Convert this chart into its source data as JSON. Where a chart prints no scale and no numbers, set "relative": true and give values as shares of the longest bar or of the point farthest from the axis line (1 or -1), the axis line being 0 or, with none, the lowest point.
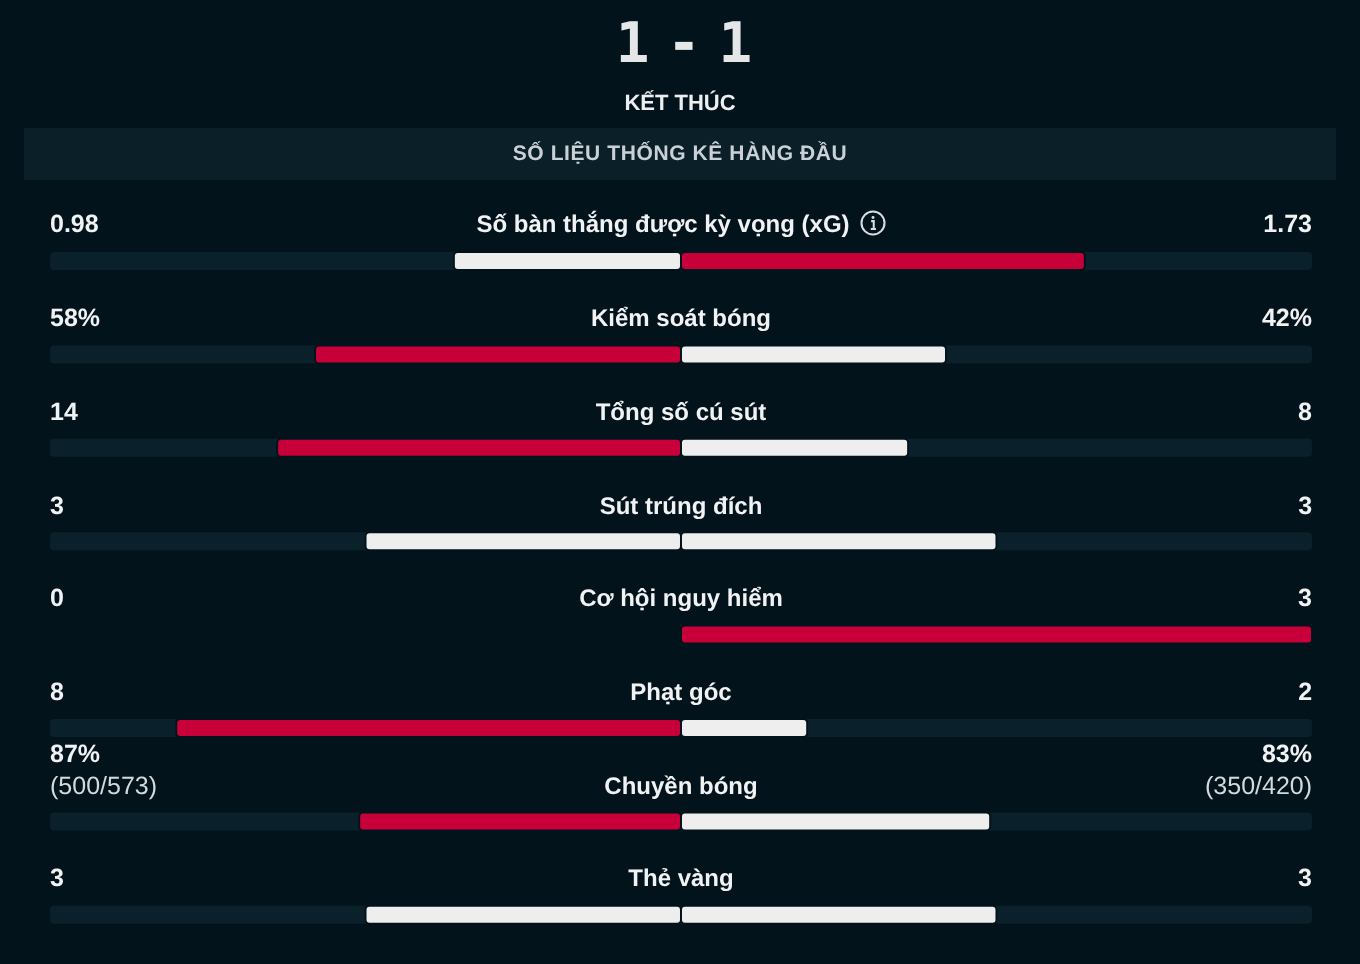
{
  "chart_data": {
    "type": "bar",
    "orientation": "horizontal",
    "stacked": true,
    "relative": true,
    "title": "1 - 1",
    "subtitle": "KẾT THÚC",
    "annotations": [
      "SỐ LIỆU THỐNG KÊ HÀNG ĐẦU",
      "0.98",
      "1.73",
      "58%",
      "42%",
      "14",
      "8",
      "3",
      "3",
      "0",
      "3",
      "8",
      "2",
      "87%\n(500/573)",
      "83%\n(350/420)",
      "3",
      "3"
    ],
    "categories": [
      "Số bàn thắng được kỳ vọng (xG)",
      "Kiểm soát bóng",
      "Tổng số cú sút",
      "Sút trúng đích",
      "Cơ hội nguy hiểm",
      "Phạt góc",
      "Chuyền bóng",
      "Thẻ vàng"
    ],
    "series": [
      {
        "values": [
          -0.36,
          -0.58,
          -0.64,
          -0.5,
          0,
          -0.8,
          -0.51,
          -0.5
        ],
        "colors": [
          "#eeeeee",
          "#c8003a",
          "#c8003a",
          "#eeeeee",
          "#eeeeee",
          "#c8003a",
          "#c8003a",
          "#eeeeee"
        ]
      },
      {
        "values": [
          0.64,
          0.42,
          0.36,
          0.5,
          1,
          0.2,
          0.49,
          0.5
        ],
        "colors": [
          "#c8003a",
          "#eeeeee",
          "#eeeeee",
          "#eeeeee",
          "#c8003a",
          "#eeeeee",
          "#eeeeee",
          "#eeeeee"
        ]
      }
    ]
  }
}
